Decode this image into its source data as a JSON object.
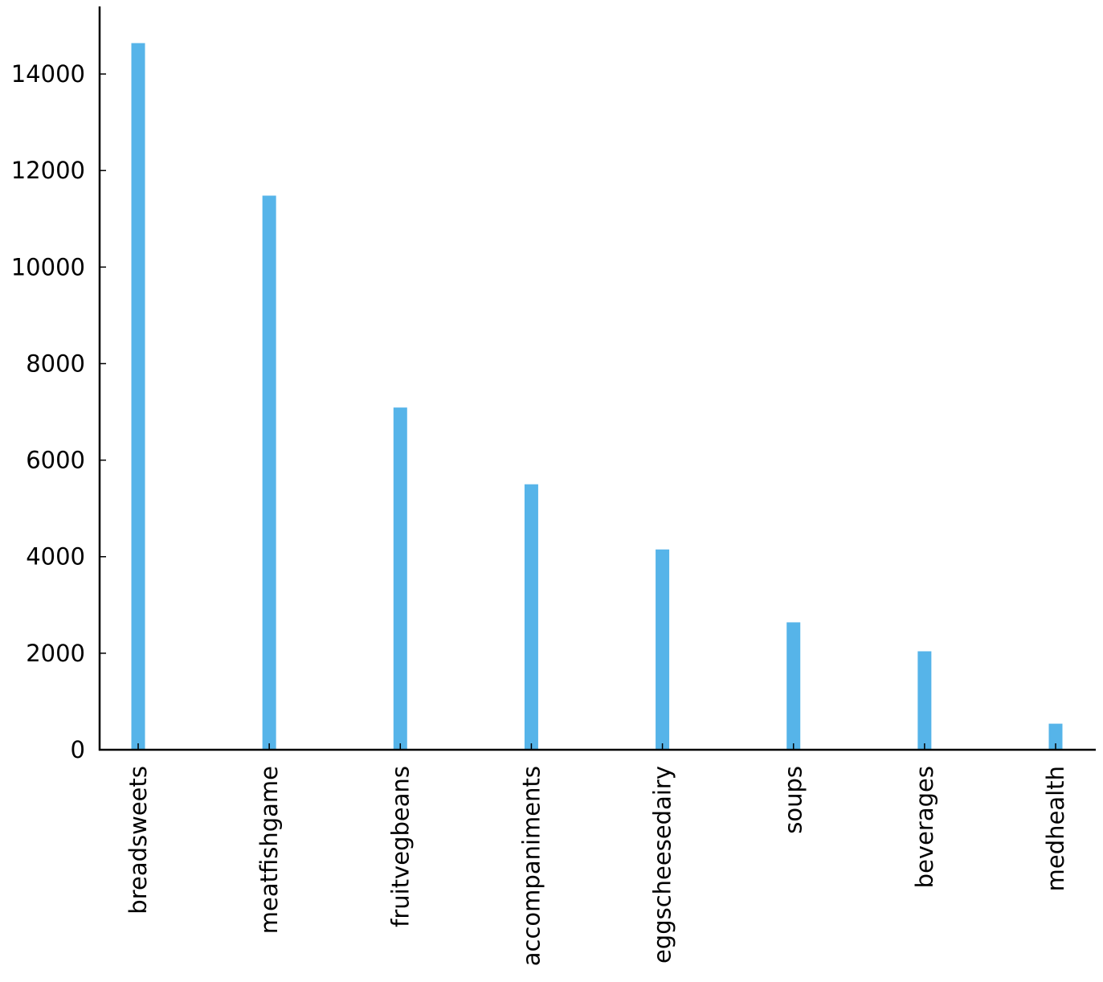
{
  "chart_data": {
    "type": "bar",
    "categories": [
      "breadsweets",
      "meatfishgame",
      "fruitvegbeans",
      "accompaniments",
      "eggscheesedairy",
      "soups",
      "beverages",
      "medhealth"
    ],
    "values": [
      14640,
      11480,
      7090,
      5500,
      4150,
      2640,
      2040,
      540
    ],
    "title": "",
    "xlabel": "",
    "ylabel": "",
    "ylim": [
      0,
      15400
    ],
    "yticks": [
      0,
      2000,
      4000,
      6000,
      8000,
      10000,
      12000,
      14000
    ],
    "grid": false,
    "bar_color": "#56b4e9",
    "axis_color": "#000000"
  }
}
